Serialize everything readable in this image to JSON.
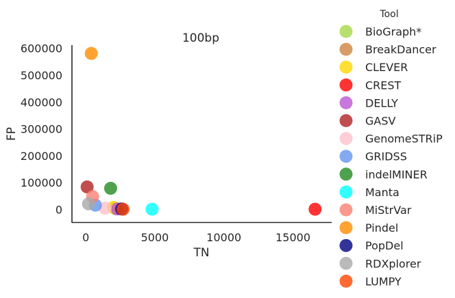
{
  "chart_data": {
    "type": "scatter",
    "title": "100bp",
    "xlabel": "TN",
    "ylabel": "FP",
    "xlim": [
      -1000,
      17800
    ],
    "ylim": [
      -47000,
      612000
    ],
    "xticks": [
      0,
      5000,
      10000,
      15000
    ],
    "yticks": [
      0,
      100000,
      200000,
      300000,
      400000,
      500000,
      600000
    ],
    "grid": false,
    "legend": {
      "title": "Tool",
      "placement": "right outside"
    },
    "series": [
      {
        "name": "BioGraph*",
        "color": "#a6d84a",
        "points": [
          [
            2100,
            5000
          ]
        ]
      },
      {
        "name": "BreakDancer",
        "color": "#cd853f",
        "points": [
          [
            2200,
            3000
          ]
        ]
      },
      {
        "name": "CLEVER",
        "color": "#ffd700",
        "points": [
          [
            2000,
            8000
          ]
        ]
      },
      {
        "name": "CREST",
        "color": "#ff0000",
        "points": [
          [
            16600,
            1000
          ]
        ]
      },
      {
        "name": "DELLY",
        "color": "#ba55d3",
        "points": [
          [
            2300,
            2000
          ]
        ]
      },
      {
        "name": "GASV",
        "color": "#b22222",
        "points": [
          [
            100,
            84000
          ]
        ]
      },
      {
        "name": "GenomeSTRiP",
        "color": "#ffc0cb",
        "points": [
          [
            1400,
            5000
          ]
        ]
      },
      {
        "name": "GRIDSS",
        "color": "#6495ed",
        "points": [
          [
            700,
            16000
          ]
        ]
      },
      {
        "name": "indelMINER",
        "color": "#228b22",
        "points": [
          [
            1800,
            79000
          ]
        ]
      },
      {
        "name": "Manta",
        "color": "#00ffff",
        "points": [
          [
            4800,
            1000
          ]
        ]
      },
      {
        "name": "MiStrVar",
        "color": "#fa8072",
        "points": [
          [
            500,
            48000
          ]
        ]
      },
      {
        "name": "Pindel",
        "color": "#ff8c00",
        "points": [
          [
            400,
            581000
          ]
        ]
      },
      {
        "name": "PopDel",
        "color": "#000080",
        "points": [
          [
            2600,
            2000
          ]
        ]
      },
      {
        "name": "RDXplorer",
        "color": "#a9a9a9",
        "points": [
          [
            200,
            21000
          ]
        ]
      },
      {
        "name": "LUMPY",
        "color": "#ff4500",
        "points": [
          [
            2700,
            1000
          ]
        ]
      }
    ]
  }
}
